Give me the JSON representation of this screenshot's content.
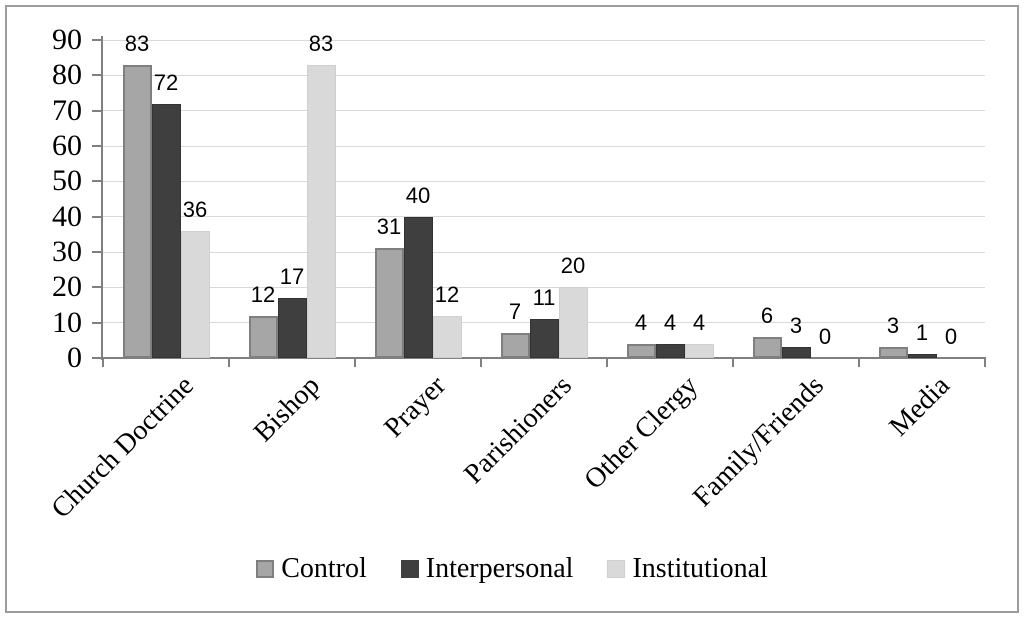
{
  "chart_data": {
    "type": "bar",
    "categories": [
      "Church Doctrine",
      "Bishop",
      "Prayer",
      "Parishioners",
      "Other Clergy",
      "Family/Friends",
      "Media"
    ],
    "series": [
      {
        "name": "Control",
        "values": [
          83,
          12,
          31,
          7,
          4,
          6,
          3
        ],
        "fill": "#a6a6a6",
        "stroke": "#7f7f7f"
      },
      {
        "name": "Interpersonal",
        "values": [
          72,
          17,
          40,
          11,
          4,
          3,
          1
        ],
        "fill": "#3f3f3f",
        "stroke": "#333333"
      },
      {
        "name": "Institutional",
        "values": [
          36,
          83,
          12,
          20,
          4,
          0,
          0
        ],
        "fill": "#d9d9d9",
        "stroke": "#cfcfcf"
      }
    ],
    "title": "",
    "xlabel": "",
    "ylabel": "",
    "y_axis": {
      "min": 0,
      "max": 90,
      "step": 10,
      "tick_labels": [
        "0",
        "10",
        "20",
        "30",
        "40",
        "50",
        "60",
        "70",
        "80",
        "90"
      ]
    },
    "grid": true,
    "data_labels": true,
    "legend_position": "bottom"
  },
  "colors": {
    "axis": "#808080",
    "gridline": "#d9d9d9",
    "frame_border": "#9d9d9d",
    "background": "#ffffff",
    "text": "#000000"
  }
}
